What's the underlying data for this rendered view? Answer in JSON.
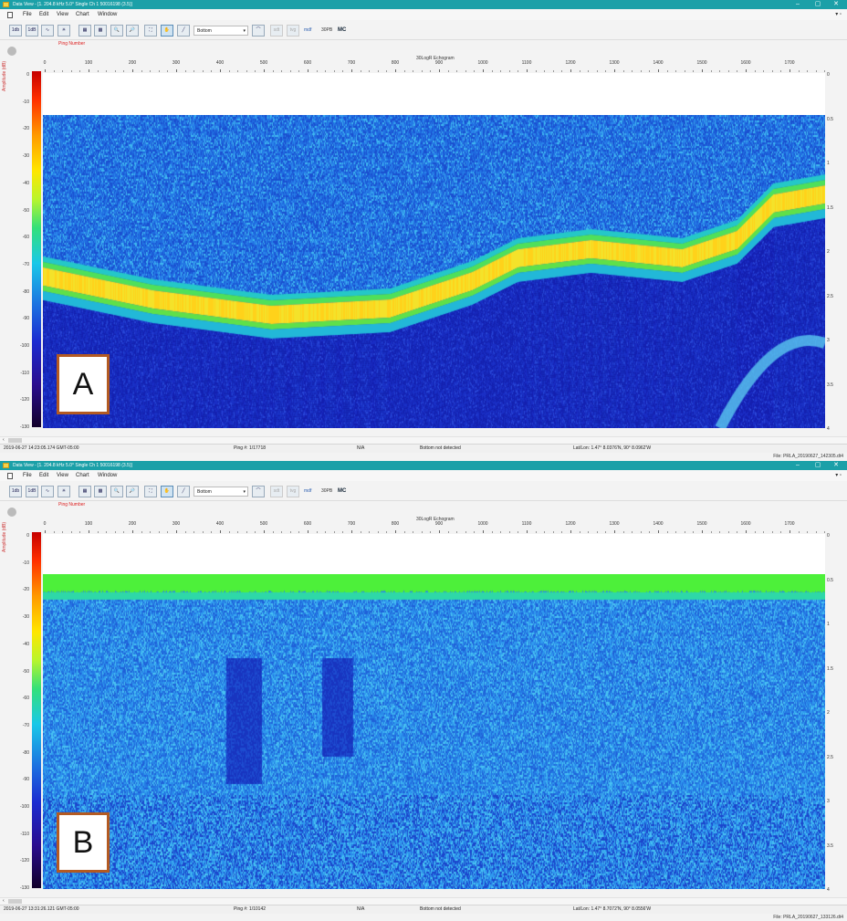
{
  "window_title": "Data View - [1. 204.8 kHz 5.0° Single Ch 1 50016198 (3.5)]",
  "menu": [
    "File",
    "Edit",
    "View",
    "Chart",
    "Window"
  ],
  "toolbar": {
    "bottom_combo": "Bottom",
    "buttons": [
      "1db",
      "1dB",
      "curve",
      "sun",
      "grid-a",
      "grid-b",
      "zoom-in",
      "zoom-out",
      "pan-extent",
      "hand",
      "pen"
    ],
    "text_buttons": [
      "sdt",
      "tvg"
    ],
    "mdf": "mdf",
    "b40_label": "30PB",
    "mc_label": "MC"
  },
  "labels": {
    "ping_number": "Ping Number",
    "echogram_title": "30LogR Echogram",
    "amplitude_axis": "Amplitude (dB)"
  },
  "x_ticks": [
    "0",
    "100",
    "200",
    "300",
    "400",
    "500",
    "600",
    "700",
    "800",
    "900",
    "1000",
    "1100",
    "1200",
    "1300",
    "1400",
    "1500",
    "1600",
    "1700"
  ],
  "left_ticks": [
    "0",
    "-10",
    "-20",
    "-30",
    "-40",
    "-50",
    "-60",
    "-70",
    "-80",
    "-90",
    "-100",
    "-110",
    "-120",
    "-130"
  ],
  "right_ticks": [
    "0",
    "0.5",
    "1",
    "1.5",
    "2",
    "2.5",
    "3",
    "3.5",
    "4"
  ],
  "panels": [
    {
      "label": "A",
      "status": {
        "timestamp": "2019-06-27 14:23:05.174 GMT-05:00",
        "ping": "Ping #: 1/17718",
        "na": "N/A",
        "bottom": "Bottom not detected",
        "latlon": "Lat/Lon: 1.47° 8.0376'N, 90° 8.0962'W"
      },
      "file": "File:  PRLA_20190627_142305.dt4",
      "colors": {
        "band": "#ffd21a",
        "halo": "#2ce07a"
      }
    },
    {
      "label": "B",
      "status": {
        "timestamp": "2019-06-27 13:31:26.121 GMT-05:00",
        "ping": "Ping #: 1/10142",
        "na": "N/A",
        "bottom": "Bottom not detected",
        "latlon": "Lat/Lon: 1.47° 8.7072'N, 90° 8.0556'W"
      },
      "file": "File:  PRLA_20190627_133126.dt4",
      "colors": {
        "band": "#4df03a",
        "halo": "#1fd8c8"
      }
    }
  ],
  "colors": {
    "title_bar": "#1ba0a8",
    "background_deep": "#1b2bd0",
    "background_mid": "#1c6fe0",
    "badge_border": "#b35a22"
  }
}
